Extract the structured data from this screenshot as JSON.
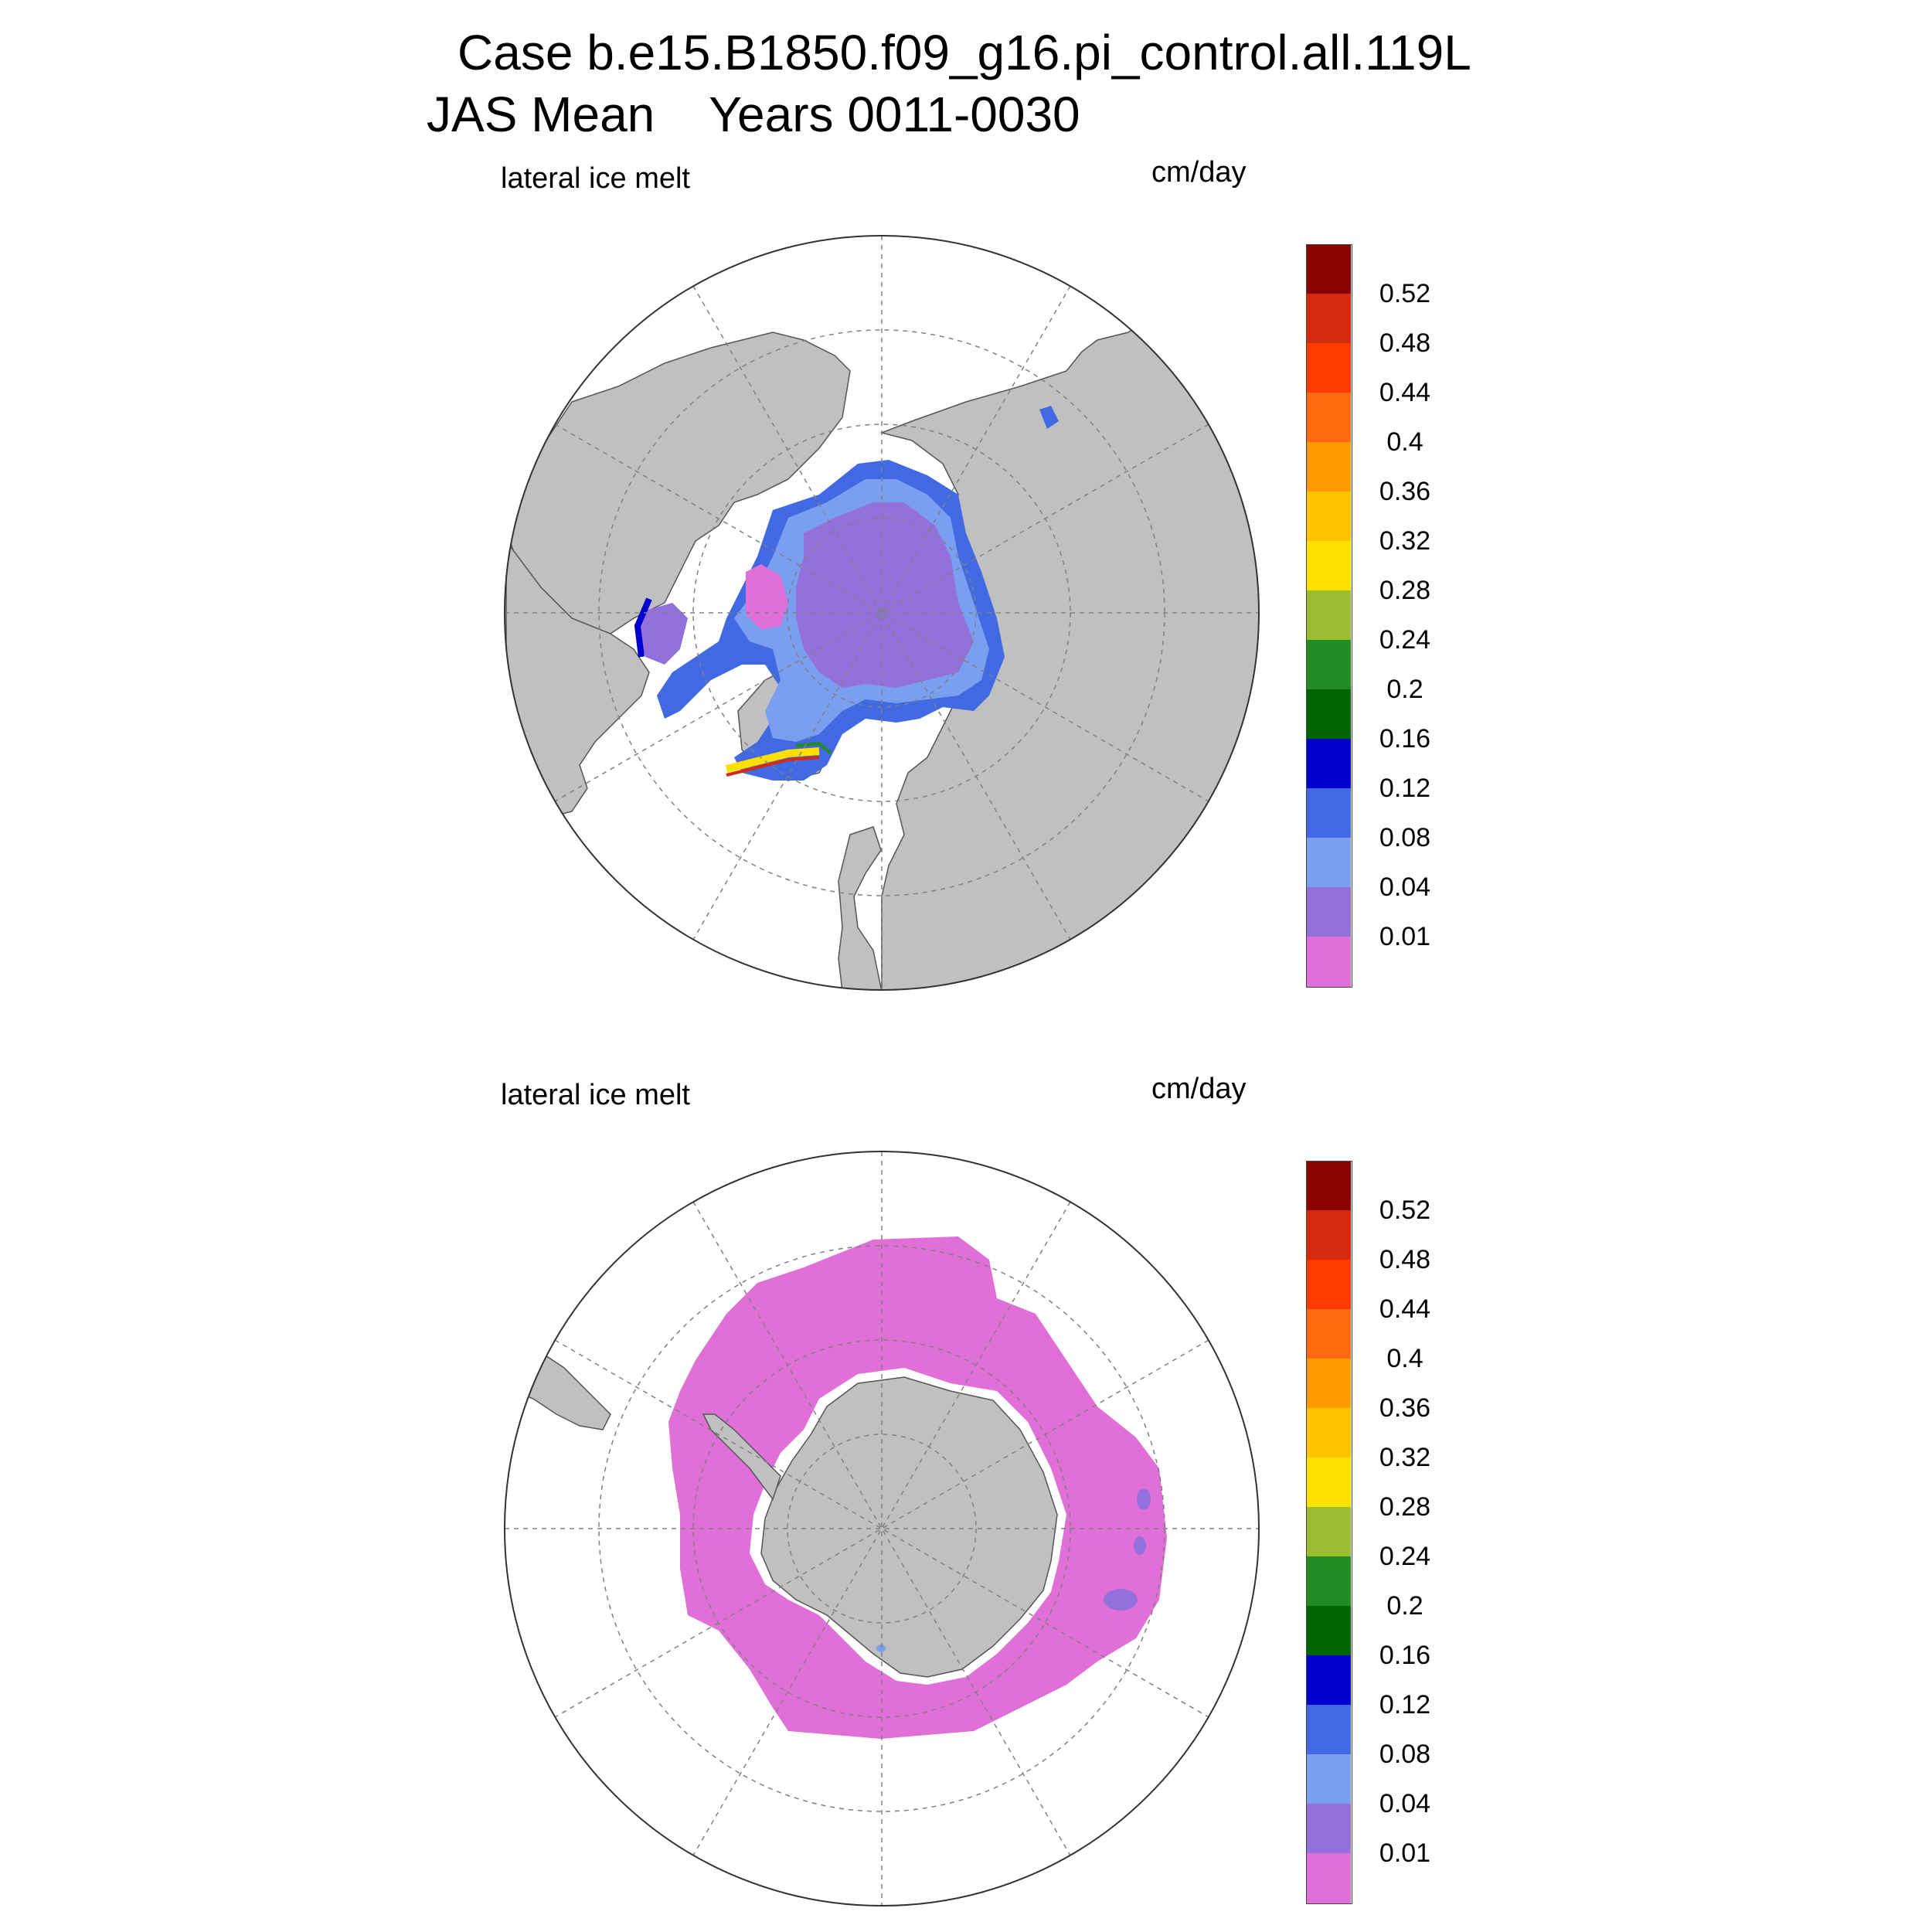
{
  "title": {
    "line1": "Case b.e15.B1850.f09_g16.pi_control.all.119L",
    "line2": "JAS Mean    Years 0011-0030"
  },
  "colorbar": {
    "levels": [
      "0.52",
      "0.48",
      "0.44",
      "0.4",
      "0.36",
      "0.32",
      "0.28",
      "0.24",
      "0.2",
      "0.16",
      "0.12",
      "0.08",
      "0.04",
      "0.01"
    ],
    "colors": [
      "#8b0000",
      "#d42a10",
      "#ff3a00",
      "#ff6a10",
      "#ff9a00",
      "#ffc200",
      "#ffe000",
      "#9abd32",
      "#228b22",
      "#006400",
      "#0000cd",
      "#4169e1",
      "#7b9ff0",
      "#9370db",
      "#e070d8"
    ]
  },
  "colors": {
    "land": "#c0c0c0",
    "ocean": "#ffffff",
    "grid": "#808080"
  },
  "panels": [
    {
      "id": "north",
      "hemisphere": "Northern",
      "variable_label": "lateral ice melt",
      "units": "cm/day"
    },
    {
      "id": "south",
      "hemisphere": "Southern",
      "variable_label": "lateral ice melt",
      "units": "cm/day"
    }
  ]
}
